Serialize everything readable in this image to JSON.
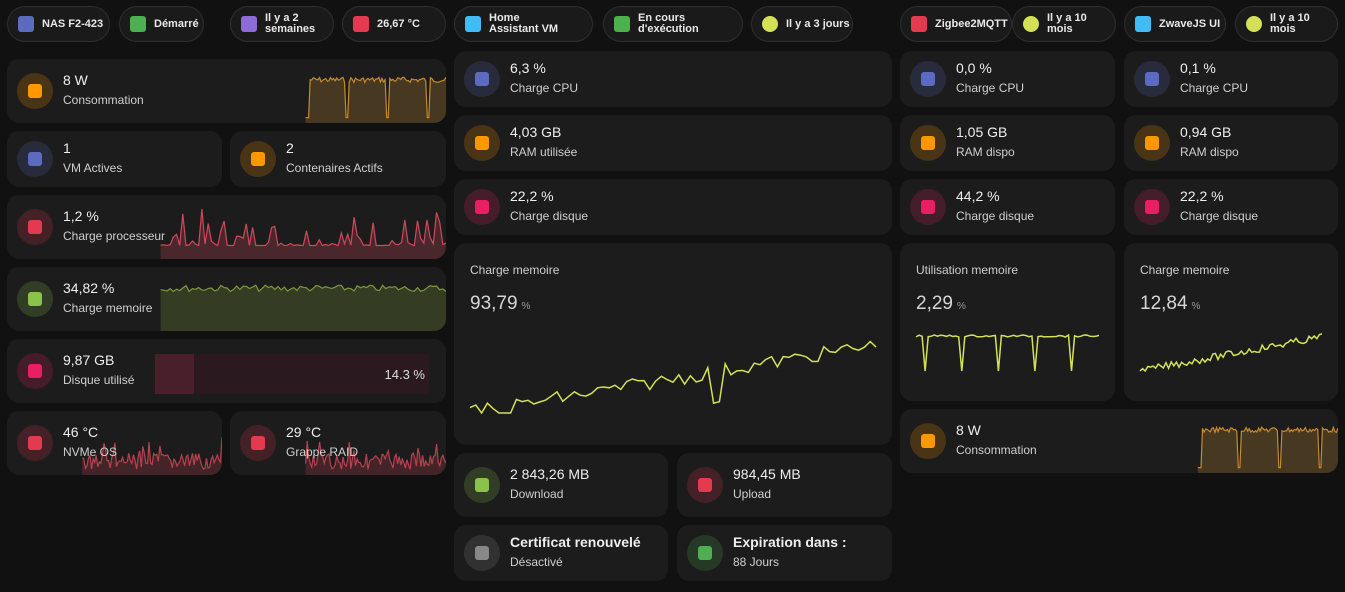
{
  "chips": [
    "NAS F2-423",
    "Démarré",
    "Il y a 2 semaines",
    "26,67 °C",
    "Home Assistant VM",
    "En cours d'exécution",
    "Il y a 3 jours",
    "Zigbee2MQTT",
    "Il y a 10 mois",
    "ZwaveJS UI",
    "Il y a 10 mois"
  ],
  "cards": [
    {
      "value": "8 W",
      "label": "Consommation"
    },
    {
      "value": "1",
      "label": "VM Actives"
    },
    {
      "value": "2",
      "label": "Contenaires Actifs"
    },
    {
      "value": "1,2 %",
      "label": "Charge processeur"
    },
    {
      "value": "34,82 %",
      "label": "Charge memoire"
    },
    {
      "value": "9,87 GB",
      "label": "Disque utilisé",
      "bar_label": "14.3 %"
    },
    {
      "value": "46 °C",
      "label": "NVMe OS"
    },
    {
      "value": "29 °C",
      "label": "Grappe RAID"
    },
    {
      "value": "6,3 %",
      "label": "Charge CPU"
    },
    {
      "value": "4,03 GB",
      "label": "RAM utilisée"
    },
    {
      "value": "22,2 %",
      "label": "Charge disque"
    },
    {
      "value": "2 843,26 MB",
      "label": "Download"
    },
    {
      "value": "984,45 MB",
      "label": "Upload"
    },
    {
      "value": "Certificat renouvelé",
      "label": "Désactivé"
    },
    {
      "value": "Expiration dans :",
      "label": "88 Jours"
    },
    {
      "value": "0,0 %",
      "label": "Charge CPU"
    },
    {
      "value": "0,1 %",
      "label": "Charge CPU"
    },
    {
      "value": "1,05 GB",
      "label": "RAM dispo"
    },
    {
      "value": "0,94 GB",
      "label": "RAM dispo"
    },
    {
      "value": "44,2 %",
      "label": "Charge disque"
    },
    {
      "value": "22,2 %",
      "label": "Charge disque"
    },
    {
      "value": "8 W",
      "label": "Consommation"
    }
  ],
  "memory_charts": [
    {
      "title": "Charge memoire",
      "value": "93,79",
      "unit": "%"
    },
    {
      "title": "Utilisation memoire",
      "value": "2,29",
      "unit": "%"
    },
    {
      "title": "Charge memoire",
      "value": "12,84",
      "unit": "%"
    }
  ]
}
